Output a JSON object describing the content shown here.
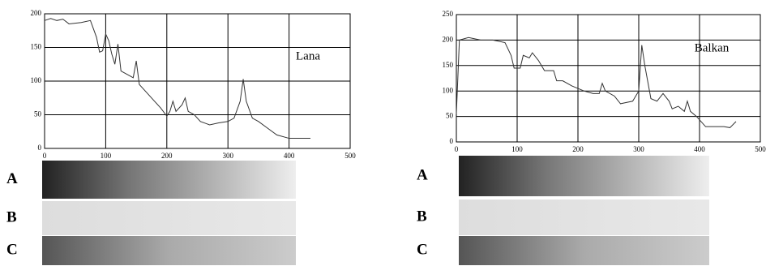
{
  "chart_data": [
    {
      "type": "line",
      "annotation": "Lana",
      "x": [
        0,
        10,
        20,
        30,
        40,
        50,
        60,
        75,
        85,
        90,
        95,
        100,
        105,
        110,
        115,
        120,
        125,
        135,
        145,
        150,
        155,
        165,
        180,
        190,
        200,
        205,
        210,
        215,
        225,
        230,
        235,
        245,
        255,
        270,
        285,
        300,
        310,
        320,
        325,
        330,
        340,
        350,
        365,
        380,
        400,
        420,
        435
      ],
      "series": [
        {
          "color": "#333333",
          "values": [
            190,
            193,
            190,
            192,
            185,
            186,
            187,
            190,
            165,
            143,
            145,
            170,
            160,
            140,
            125,
            155,
            115,
            110,
            105,
            130,
            95,
            85,
            70,
            60,
            48,
            55,
            70,
            55,
            65,
            75,
            55,
            50,
            40,
            35,
            38,
            40,
            45,
            70,
            103,
            70,
            45,
            40,
            30,
            20,
            15,
            15,
            15
          ]
        }
      ],
      "xlim": [
        0,
        500
      ],
      "ylim": [
        0,
        200
      ],
      "xticks": [
        0,
        100,
        200,
        300,
        400,
        500
      ],
      "yticks": [
        0,
        50,
        100,
        150,
        200
      ],
      "grid": true,
      "lane_labels": [
        "A",
        "B",
        "C"
      ]
    },
    {
      "type": "line",
      "annotation": "Balkan",
      "x": [
        0,
        5,
        20,
        40,
        60,
        80,
        90,
        95,
        105,
        110,
        120,
        125,
        135,
        145,
        160,
        165,
        175,
        190,
        210,
        225,
        235,
        240,
        245,
        260,
        270,
        290,
        300,
        305,
        310,
        320,
        330,
        340,
        350,
        355,
        365,
        375,
        380,
        385,
        395,
        410,
        440,
        450,
        460
      ],
      "series": [
        {
          "color": "#333333",
          "values": [
            55,
            200,
            205,
            200,
            200,
            195,
            170,
            145,
            145,
            170,
            165,
            175,
            160,
            140,
            140,
            120,
            120,
            110,
            100,
            95,
            95,
            115,
            100,
            90,
            75,
            80,
            100,
            190,
            150,
            85,
            80,
            95,
            80,
            65,
            70,
            60,
            80,
            60,
            50,
            30,
            30,
            28,
            40
          ]
        }
      ],
      "xlim": [
        0,
        500
      ],
      "ylim": [
        0,
        250
      ],
      "xticks": [
        0,
        100,
        200,
        300,
        400,
        500
      ],
      "yticks": [
        0,
        50,
        100,
        150,
        200,
        250
      ],
      "grid": true,
      "lane_labels": [
        "A",
        "B",
        "C"
      ]
    }
  ]
}
